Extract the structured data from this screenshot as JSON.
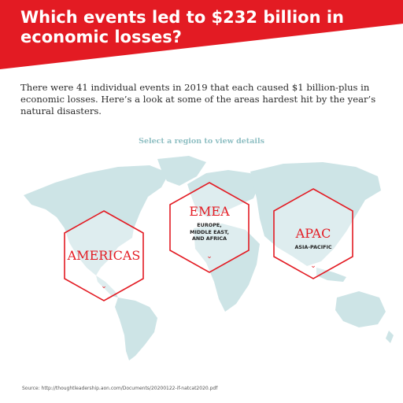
{
  "header": {
    "title": "Which events led to $232 billion in economic losses?",
    "color": "#e31b23"
  },
  "intro": "There were 41 individual events in 2019 that each caused $1 billion-plus in economic losses. Here’s a look at some of the areas hardest hit by the year’s natural disasters.",
  "prompt": "Select a region to view details",
  "map": {
    "land_color": "#cde4e6"
  },
  "regions": [
    {
      "name": "AMERICAS",
      "subtitle": "",
      "icon": "chevron-down-icon"
    },
    {
      "name": "EMEA",
      "subtitle": "EUROPE,\nMIDDLE EAST,\nAND AFRICA",
      "icon": "chevron-down-icon"
    },
    {
      "name": "APAC",
      "subtitle": "ASIA-PACIFIC",
      "icon": "chevron-down-icon"
    }
  ],
  "source": "Source: http://thoughtleadership.aon.com/Documents/20200122-if-natcat2020.pdf"
}
